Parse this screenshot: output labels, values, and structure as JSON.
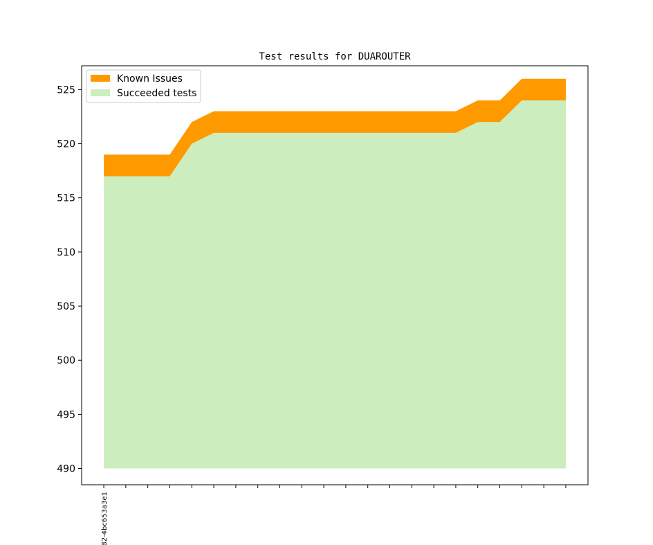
{
  "chart_data": {
    "type": "area",
    "title": "Test results for DUAROUTER",
    "xlabel": "",
    "ylabel": "",
    "ylim": [
      488.5,
      527.2
    ],
    "yticks": [
      490,
      495,
      500,
      505,
      510,
      515,
      520,
      525
    ],
    "x": [
      0,
      1,
      2,
      3,
      4,
      5,
      6,
      7,
      8,
      9,
      10,
      11,
      12,
      13,
      14,
      15,
      16,
      17,
      18,
      19,
      20,
      21
    ],
    "x_tick_labels": [
      "82-4bc653a3e1",
      "",
      "",
      "",
      "",
      "",
      "",
      "",
      "",
      "",
      "",
      "",
      "",
      "",
      "",
      "",
      "",
      "",
      "",
      "",
      "",
      ""
    ],
    "baseline": 490,
    "series": [
      {
        "name": "Known Issues",
        "color": "#ff9900",
        "values": [
          2,
          2,
          2,
          2,
          2,
          2,
          2,
          2,
          2,
          2,
          2,
          2,
          2,
          2,
          2,
          2,
          2,
          2,
          2,
          2,
          2,
          2
        ]
      },
      {
        "name": "Succeeded tests",
        "color": "#ccedbe",
        "values": [
          517,
          517,
          517,
          517,
          520,
          521,
          521,
          521,
          521,
          521,
          521,
          521,
          521,
          521,
          521,
          521,
          521,
          522,
          522,
          524,
          524,
          524
        ]
      }
    ],
    "legend_position": "top-left",
    "grid": false
  }
}
